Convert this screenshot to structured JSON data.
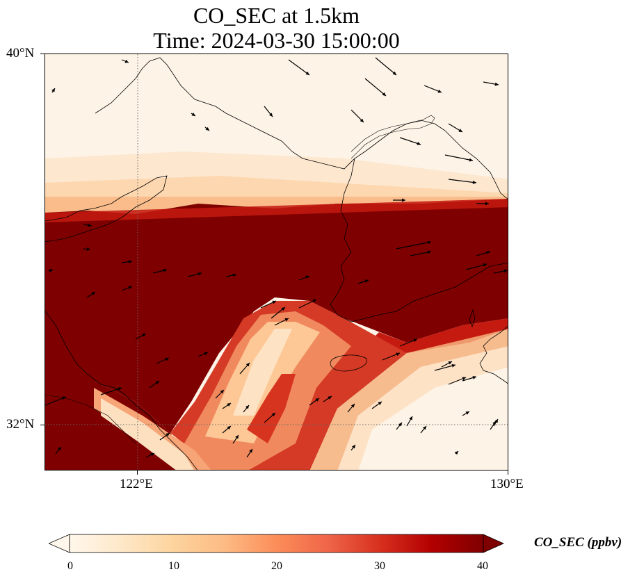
{
  "title": {
    "line1": "CO_SEC at 1.5km",
    "line2": "Time: 2024-03-30 15:00:00"
  },
  "map": {
    "projection": "PlateCarree",
    "extent": {
      "lon_min": 120,
      "lon_max": 130,
      "lat_min": 31,
      "lat_max": 40
    },
    "gridlines": {
      "style": "dotted",
      "color": "#666666",
      "lons": [
        122
      ],
      "lats": [
        32
      ]
    },
    "lat_ticks": [
      {
        "value": 40,
        "label": "40°N"
      },
      {
        "value": 32,
        "label": "32°N"
      }
    ],
    "lon_ticks": [
      {
        "value": 122,
        "label": "122°E"
      },
      {
        "value": 130,
        "label": "130°E"
      }
    ],
    "field_description_regions": {
      "north_low": "near 0 ppbv over Bohai Sea / Liaodong / North Korea",
      "band_high": ">=40 ppbv band from Shandong across Yellow Sea to Korea (about 33.5–36N)",
      "plume_lowmid": "diagonal lower-concentration plume from ~32.5N,124E to ~34N,126.5E",
      "south_east_low": "near 0 ppbv over East China Sea south of Korea"
    },
    "wind_vectors": "black arrows, mostly westerly/northwesterly"
  },
  "colorbar": {
    "label": "CO_SEC (ppbv)",
    "min": 0,
    "max": 40,
    "ticks": [
      "0",
      "10",
      "20",
      "30",
      "40"
    ],
    "colormap": "OrRd",
    "extend": "both",
    "colors": [
      "#fff7ec",
      "#fee8c8",
      "#fdd49e",
      "#fdbb84",
      "#fc8d59",
      "#ef6548",
      "#d7301f",
      "#b30000",
      "#7f0000"
    ]
  }
}
